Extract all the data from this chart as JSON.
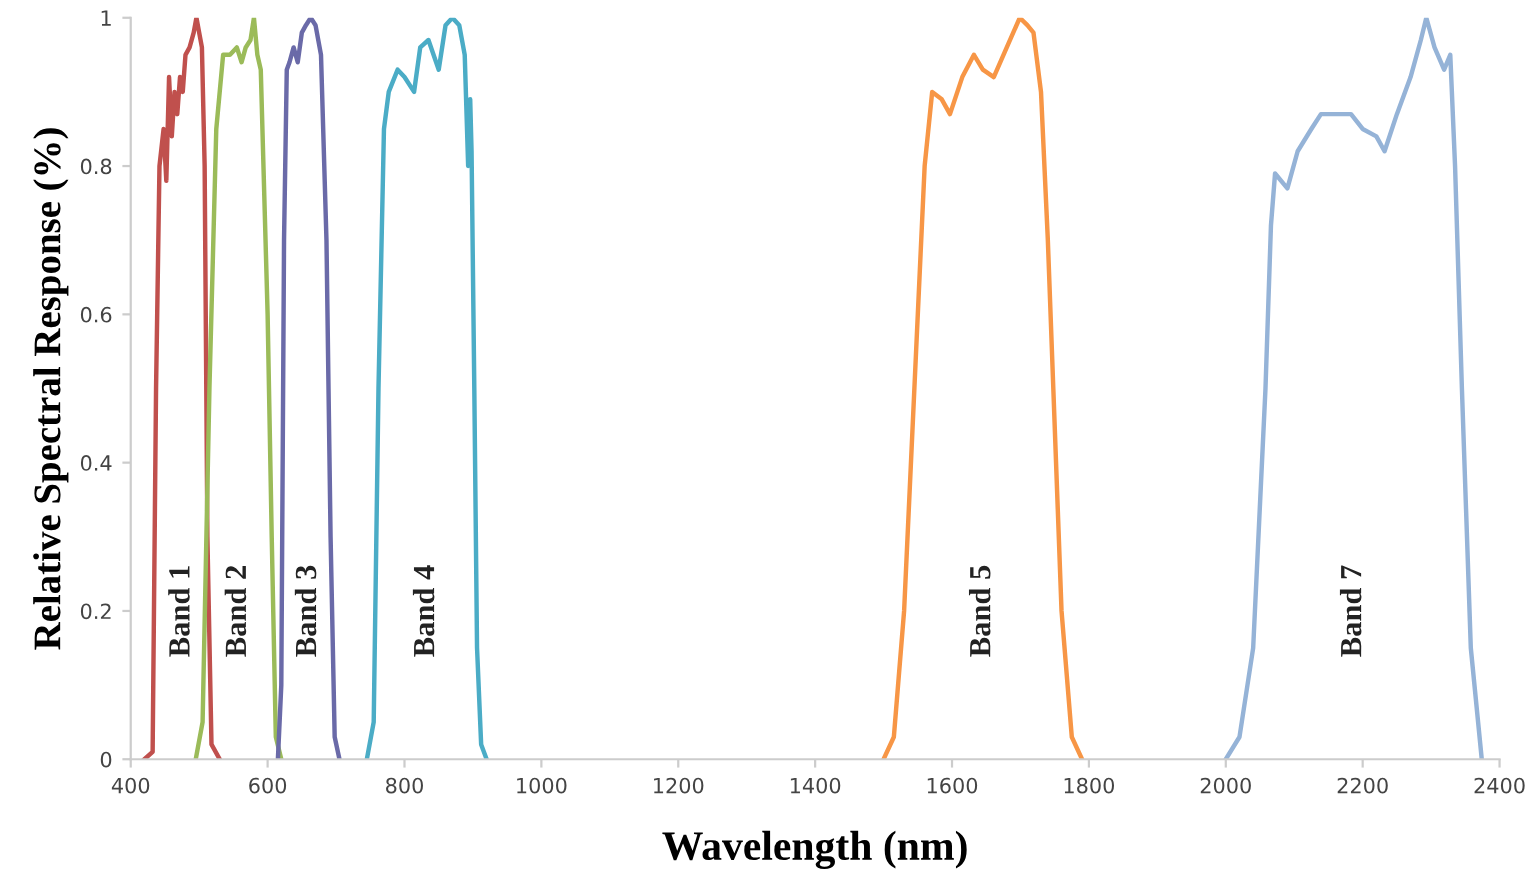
{
  "chart_data": {
    "type": "line",
    "xlabel": "Wavelength (nm)",
    "ylabel": "Relative Spectral Response (%)",
    "xlim": [
      400,
      2400
    ],
    "ylim": [
      0,
      1
    ],
    "xticks": [
      400,
      600,
      800,
      1000,
      1200,
      1400,
      1600,
      1800,
      2000,
      2200,
      2400
    ],
    "yticks": [
      0,
      0.2,
      0.4,
      0.6,
      0.8,
      1
    ],
    "grid": false,
    "legend": false,
    "marker": "none",
    "line_style": "solid",
    "series": [
      {
        "name": "Band 1",
        "color": "#c0504d",
        "x": [
          420,
          432,
          437,
          442,
          448,
          452,
          456,
          460,
          464,
          468,
          472,
          476,
          480,
          486,
          492,
          496,
          500,
          504,
          508,
          512,
          518,
          530
        ],
        "values": [
          0,
          0.01,
          0.5,
          0.8,
          0.85,
          0.78,
          0.92,
          0.84,
          0.9,
          0.87,
          0.92,
          0.9,
          0.95,
          0.96,
          0.98,
          1.0,
          0.98,
          0.96,
          0.8,
          0.3,
          0.02,
          0
        ]
      },
      {
        "name": "Band 2",
        "color": "#9bbb59",
        "x": [
          495,
          505,
          515,
          525,
          535,
          545,
          555,
          562,
          568,
          575,
          580,
          585,
          590,
          600,
          606,
          612,
          620
        ],
        "values": [
          0,
          0.05,
          0.5,
          0.85,
          0.95,
          0.95,
          0.96,
          0.94,
          0.96,
          0.97,
          1.0,
          0.95,
          0.93,
          0.6,
          0.3,
          0.03,
          0
        ]
      },
      {
        "name": "Band 3",
        "color": "#6a6aa8",
        "x": [
          615,
          620,
          624,
          628,
          632,
          638,
          644,
          650,
          656,
          663,
          670,
          678,
          686,
          692,
          698,
          705
        ],
        "values": [
          0,
          0.1,
          0.7,
          0.93,
          0.94,
          0.96,
          0.94,
          0.98,
          0.99,
          1.0,
          0.99,
          0.95,
          0.7,
          0.3,
          0.03,
          0
        ]
      },
      {
        "name": "Band 4",
        "color": "#4bacc6",
        "x": [
          745,
          755,
          762,
          770,
          777,
          790,
          800,
          814,
          823,
          835,
          850,
          860,
          870,
          880,
          888,
          893,
          896,
          898,
          902,
          906,
          912,
          920
        ],
        "values": [
          0,
          0.05,
          0.5,
          0.85,
          0.9,
          0.93,
          0.92,
          0.9,
          0.96,
          0.97,
          0.93,
          0.99,
          1.0,
          0.99,
          0.95,
          0.8,
          0.89,
          0.82,
          0.5,
          0.15,
          0.02,
          0
        ]
      },
      {
        "name": "Band 5",
        "color": "#f79646",
        "x": [
          1500,
          1515,
          1530,
          1545,
          1560,
          1571,
          1585,
          1597,
          1615,
          1632,
          1645,
          1661,
          1680,
          1699,
          1710,
          1719,
          1730,
          1740,
          1748,
          1760,
          1775,
          1790
        ],
        "values": [
          0,
          0.03,
          0.2,
          0.5,
          0.8,
          0.9,
          0.89,
          0.87,
          0.92,
          0.95,
          0.93,
          0.92,
          0.96,
          1.0,
          0.99,
          0.98,
          0.9,
          0.7,
          0.5,
          0.2,
          0.03,
          0
        ]
      },
      {
        "name": "Band 7",
        "color": "#95b3d7",
        "x": [
          2000,
          2020,
          2040,
          2058,
          2066,
          2072,
          2090,
          2105,
          2125,
          2139,
          2160,
          2183,
          2200,
          2220,
          2232,
          2250,
          2270,
          2285,
          2293,
          2305,
          2319,
          2328,
          2335,
          2345,
          2358,
          2374
        ],
        "values": [
          0,
          0.03,
          0.15,
          0.5,
          0.72,
          0.79,
          0.77,
          0.82,
          0.85,
          0.87,
          0.87,
          0.87,
          0.85,
          0.84,
          0.82,
          0.87,
          0.92,
          0.97,
          1.0,
          0.96,
          0.93,
          0.95,
          0.8,
          0.5,
          0.15,
          0
        ]
      }
    ]
  }
}
